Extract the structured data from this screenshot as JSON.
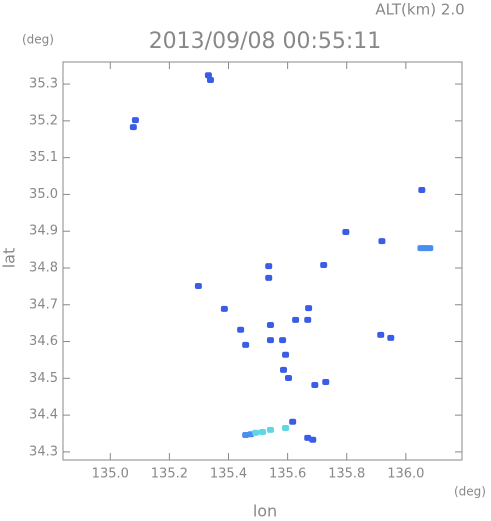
{
  "chart_data": {
    "type": "scatter",
    "title": "2013/09/08 00:55:11",
    "annotation": "ALT(km) 2.0",
    "x_label": "lon",
    "y_label": "lat",
    "x_unit": "(deg)",
    "y_unit": "(deg)",
    "xlim": [
      134.84,
      136.19
    ],
    "ylim": [
      34.278,
      35.36
    ],
    "xticks": [
      {
        "value": 135.0,
        "label": "135.0"
      },
      135.2,
      135.4,
      135.6,
      135.8,
      {
        "value": 136.0,
        "label": "136.0"
      }
    ],
    "yticks": [
      34.3,
      34.4,
      34.5,
      34.6,
      34.7,
      34.8,
      34.9,
      {
        "value": 35.0,
        "label": "35.0"
      },
      35.1,
      35.2,
      35.3
    ],
    "series": [
      {
        "color": "#3b5de6",
        "x": [
          135.332,
          135.339,
          135.085,
          135.078,
          136.054,
          135.797,
          135.919,
          135.298,
          135.536,
          135.536,
          135.722,
          135.386,
          135.441,
          135.458,
          135.542,
          135.542,
          135.583,
          135.593,
          135.586,
          135.603,
          135.671,
          135.668,
          135.627,
          135.915,
          135.949,
          135.692,
          135.729,
          135.617,
          135.668,
          135.685
        ],
        "y": [
          35.324,
          35.311,
          35.202,
          35.183,
          35.012,
          34.898,
          34.873,
          34.751,
          34.805,
          34.773,
          34.808,
          34.689,
          34.632,
          34.591,
          34.645,
          34.604,
          34.604,
          34.564,
          34.523,
          34.501,
          34.691,
          34.659,
          34.659,
          34.618,
          34.61,
          34.482,
          34.49,
          34.382,
          34.338,
          34.333
        ]
      },
      {
        "color": "#4a8ff0",
        "x": [
          136.051,
          136.061,
          136.071,
          136.081,
          135.458,
          135.475
        ],
        "y": [
          34.854,
          34.854,
          34.854,
          34.854,
          34.346,
          34.348
        ]
      },
      {
        "color": "#5fd6e6",
        "x": [
          135.492,
          135.515,
          135.542,
          135.593
        ],
        "y": [
          34.352,
          34.354,
          34.36,
          34.365
        ]
      }
    ]
  }
}
